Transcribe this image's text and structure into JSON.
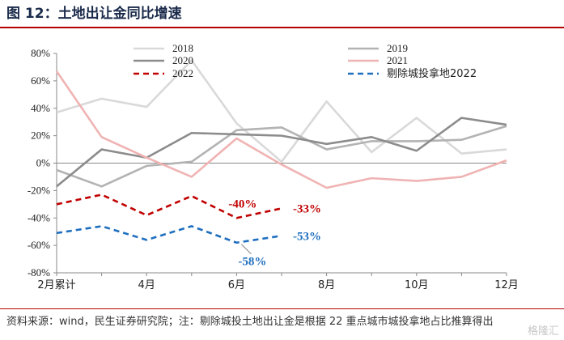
{
  "header": {
    "title": "图 12：土地出让金同比增速"
  },
  "footer": {
    "source": "资料来源：wind，民生证券研究院；注：剔除城投土地出让金是根据 22 重点城市城投拿地占比推算得出",
    "watermark": "格隆汇"
  },
  "chart_data": {
    "type": "line",
    "x": [
      2,
      3,
      4,
      5,
      6,
      7,
      8,
      9,
      10,
      11,
      12
    ],
    "x_ticks": [
      {
        "x": 2,
        "label": "2月累计"
      },
      {
        "x": 4,
        "label": "4月"
      },
      {
        "x": 6,
        "label": "6月"
      },
      {
        "x": 8,
        "label": "8月"
      },
      {
        "x": 10,
        "label": "10月"
      },
      {
        "x": 12,
        "label": "12月"
      }
    ],
    "y_ticks": [
      "80%",
      "60%",
      "40%",
      "20%",
      "0%",
      "-20%",
      "-40%",
      "-60%",
      "-80%"
    ],
    "y_tick_values": [
      80,
      60,
      40,
      20,
      0,
      -20,
      -40,
      -60,
      -80
    ],
    "ylim": [
      -80,
      80
    ],
    "xlim": [
      2,
      12
    ],
    "legend_position": "top",
    "series": [
      {
        "name": "2018",
        "color": "#d9d9d9",
        "dash": false,
        "values": [
          37,
          47,
          41,
          75,
          29,
          1,
          45,
          8,
          33,
          7,
          10
        ]
      },
      {
        "name": "2019",
        "color": "#b3b3b3",
        "dash": false,
        "values": [
          -5,
          -17,
          -2,
          1,
          24,
          26,
          10,
          16,
          16,
          17,
          27
        ]
      },
      {
        "name": "2020",
        "color": "#8c8c8c",
        "dash": false,
        "values": [
          -17,
          10,
          4,
          22,
          21,
          20,
          14,
          19,
          9,
          33,
          28
        ]
      },
      {
        "name": "2021",
        "color": "#f0b3b3",
        "dash": false,
        "values": [
          67,
          19,
          4,
          -10,
          18,
          -1,
          -18,
          -11,
          -13,
          -10,
          2
        ]
      },
      {
        "name": "2022",
        "color": "#c00000",
        "dash": true,
        "values": [
          -30,
          -23,
          -38,
          -24,
          -40,
          -33,
          null,
          null,
          null,
          null,
          null
        ]
      },
      {
        "name": "剔除城投拿地2022",
        "color": "#1f6fbf",
        "dash": true,
        "values": [
          -51,
          -46,
          -56,
          -46,
          -58,
          -53,
          null,
          null,
          null,
          null,
          null
        ]
      }
    ],
    "annotations": [
      {
        "text": "-40%",
        "x": 6,
        "y": -40,
        "color": "#c00000"
      },
      {
        "text": "-33%",
        "x": 7,
        "y": -33,
        "color": "#c00000"
      },
      {
        "text": "-53%",
        "x": 7,
        "y": -53,
        "color": "#1f6fbf"
      },
      {
        "text": "-58%",
        "x": 6,
        "y": -58,
        "color": "#1f6fbf"
      }
    ]
  }
}
